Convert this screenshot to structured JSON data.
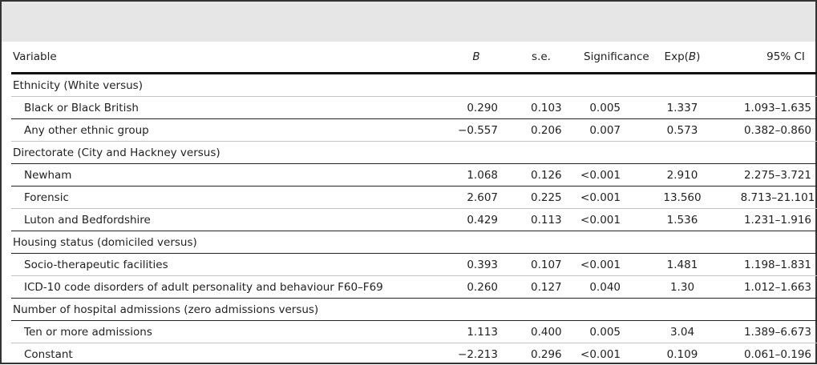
{
  "table": {
    "headers": {
      "variable": "Variable",
      "b": "B",
      "se": "s.e.",
      "significance": "Significance",
      "expb_prefix": "Exp(",
      "expb_italic": "B",
      "expb_suffix": ")",
      "ci": "95% CI"
    },
    "rows": [
      {
        "label": "Ethnicity (White versus)",
        "group": true
      },
      {
        "label": "Black or Black British",
        "b": "0.290",
        "se": "0.103",
        "sig": "0.005",
        "expb": "1.337",
        "ci": "1.093–1.635"
      },
      {
        "label": "Any other ethnic group",
        "b": "−0.557",
        "se": "0.206",
        "sig": "0.007",
        "expb": "0.573",
        "ci": "0.382–0.860"
      },
      {
        "label": "Directorate (City and Hackney versus)",
        "group": true
      },
      {
        "label": "Newham",
        "b": "1.068",
        "se": "0.126",
        "sig": "<0.001",
        "expb": "2.910",
        "ci": "2.275–3.721"
      },
      {
        "label": "Forensic",
        "b": "2.607",
        "se": "0.225",
        "sig": "<0.001",
        "expb": "13.560",
        "ci": "8.713–21.101"
      },
      {
        "label": "Luton and Bedfordshire",
        "b": "0.429",
        "se": "0.113",
        "sig": "<0.001",
        "expb": "1.536",
        "ci": "1.231–1.916"
      },
      {
        "label": "Housing status (domiciled versus)",
        "group": true
      },
      {
        "label": "Socio-therapeutic facilities",
        "b": "0.393",
        "se": "0.107",
        "sig": "<0.001",
        "expb": "1.481",
        "ci": "1.198–1.831"
      },
      {
        "label": "ICD-10 code disorders of adult personality and behaviour F60–F69",
        "b": "0.260",
        "se": "0.127",
        "sig": "0.040",
        "expb": "1.30",
        "ci": "1.012–1.663"
      },
      {
        "label": "Number of hospital admissions (zero admissions versus)",
        "group": true
      },
      {
        "label": "Ten or more admissions",
        "b": "1.113",
        "se": "0.400",
        "sig": "0.005",
        "expb": "3.04",
        "ci": "1.389–6.673"
      },
      {
        "label": "Constant",
        "b": "−2.213",
        "se": "0.296",
        "sig": "<0.001",
        "expb": "0.109",
        "ci": "0.061–0.196"
      }
    ]
  },
  "colors": {
    "header_band": "#e6e6e6",
    "frame": "#333333"
  }
}
